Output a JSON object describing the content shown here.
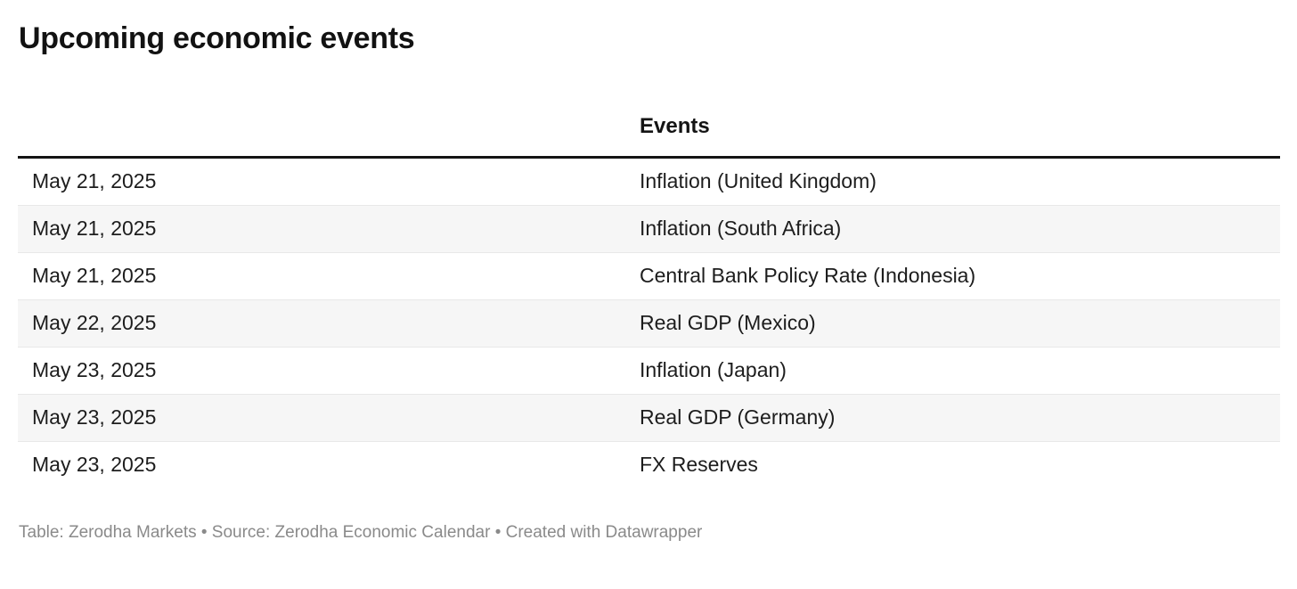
{
  "title": "Upcoming economic events",
  "chart_data": {
    "type": "table",
    "title": "Upcoming economic events",
    "columns": [
      "",
      "Events"
    ],
    "rows": [
      [
        "May 21, 2025",
        "Inflation (United Kingdom)"
      ],
      [
        "May 21, 2025",
        "Inflation (South Africa)"
      ],
      [
        "May 21, 2025",
        "Central Bank Policy Rate (Indonesia)"
      ],
      [
        "May 22, 2025",
        "Real GDP (Mexico)"
      ],
      [
        "May 23, 2025",
        "Inflation (Japan)"
      ],
      [
        "May 23, 2025",
        "Real GDP (Germany)"
      ],
      [
        "May 23, 2025",
        "FX Reserves"
      ]
    ],
    "layout_hints": {
      "striped_rows": true,
      "first_column_header_empty": true,
      "header_rule": "thick-black"
    }
  },
  "footer": {
    "text": "Table: Zerodha Markets • Source: Zerodha Economic Calendar • Created with Datawrapper"
  },
  "colors": {
    "background": "#ffffff",
    "title_text": "#121212",
    "body_text": "#1d1d1d",
    "stripe": "#f6f6f6",
    "row_border": "#e8e8e8",
    "header_rule": "#141414",
    "footer_text": "#8a8a8a"
  }
}
